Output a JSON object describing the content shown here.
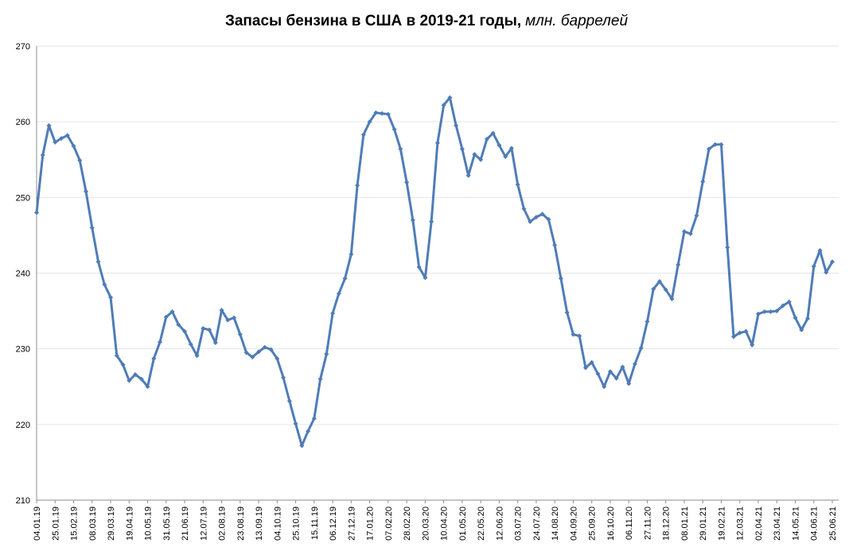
{
  "chart_data": {
    "type": "line",
    "title": "Запасы бензина в США в 2019-21 годы,",
    "title_unit": "млн. баррелей",
    "xlabel": "",
    "ylabel": "",
    "ylim": [
      210,
      270
    ],
    "yticks": [
      210,
      220,
      230,
      240,
      250,
      260,
      270
    ],
    "grid": "horizontal",
    "legend": "none",
    "series_color": "#4f7cb8",
    "x_tick_labels": [
      "04.01.19",
      "25.01.19",
      "15.02.19",
      "08.03.19",
      "29.03.19",
      "19.04.19",
      "10.05.19",
      "31.05.19",
      "21.06.19",
      "12.07.19",
      "02.08.19",
      "23.08.19",
      "13.09.19",
      "04.10.19",
      "25.10.19",
      "15.11.19",
      "06.12.19",
      "27.12.19",
      "17.01.20",
      "07.02.20",
      "28.02.20",
      "20.03.20",
      "10.04.20",
      "01.05.20",
      "22.05.20",
      "12.06.20",
      "03.07.20",
      "24.07.20",
      "14.08.20",
      "04.09.20",
      "25.09.20",
      "16.10.20",
      "06.11.20",
      "27.11.20",
      "18.12.20",
      "08.01.21",
      "29.01.21",
      "19.02.21",
      "12.03.21",
      "02.04.21",
      "23.04.21",
      "14.05.21",
      "04.06.21",
      "25.06.21"
    ],
    "series": [
      {
        "values": [
          248.0,
          255.6,
          259.5,
          257.3,
          257.8,
          258.2,
          256.8,
          254.9,
          250.8,
          246.0,
          241.5,
          238.5,
          236.8,
          229.1,
          227.9,
          225.8,
          226.6,
          226.0,
          225.0,
          228.7,
          230.9,
          234.2,
          234.9,
          233.2,
          232.3,
          230.6,
          229.1,
          232.7,
          232.5,
          230.8,
          235.1,
          233.8,
          234.1,
          231.9,
          229.5,
          228.9,
          229.6,
          230.2,
          229.9,
          228.7,
          226.2,
          223.1,
          220.1,
          217.2,
          219.1,
          220.8,
          226.0,
          229.3,
          234.7,
          237.3,
          239.3,
          242.5,
          251.6,
          258.3,
          260.0,
          261.2,
          261.1,
          261.0,
          259.0,
          256.4,
          252.0,
          247.0,
          240.8,
          239.4,
          246.8,
          257.2,
          262.2,
          263.2,
          259.5,
          256.4,
          252.9,
          255.7,
          255.0,
          257.7,
          258.5,
          256.9,
          255.4,
          256.5,
          251.7,
          248.5,
          246.8,
          247.4,
          247.8,
          247.1,
          243.7,
          239.3,
          234.8,
          231.9,
          231.7,
          227.5,
          228.2,
          226.7,
          225.0,
          227.0,
          226.1,
          227.6,
          225.4,
          228.0,
          230.1,
          233.6,
          237.9,
          238.9,
          237.8,
          236.6,
          241.1,
          245.5,
          245.2,
          247.6,
          252.1,
          256.4,
          257.0,
          257.0,
          243.4,
          231.6,
          232.1,
          232.3,
          230.5,
          234.6,
          234.9,
          234.9,
          235.0,
          235.7,
          236.2,
          234.1,
          232.5,
          234.0,
          240.9,
          243.0,
          240.1,
          241.5
        ]
      }
    ]
  }
}
